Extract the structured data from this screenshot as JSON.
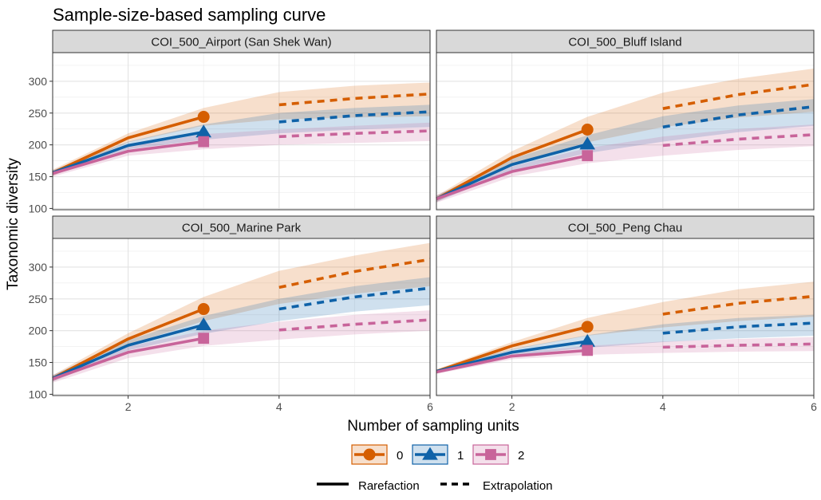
{
  "chart_data": {
    "type": "line",
    "title": "Sample-size-based sampling curve",
    "xlabel": "Number of sampling units",
    "ylabel": "Taxonomic diversity",
    "xlim": [
      1,
      6
    ],
    "ylim": [
      98,
      345
    ],
    "x_ticks": [
      2,
      4,
      6
    ],
    "y_ticks": [
      100,
      150,
      200,
      250,
      300
    ],
    "grid": true,
    "legend_placement": "bottom",
    "order_legend": [
      "0",
      "1",
      "2"
    ],
    "linetype_legend": [
      "Rarefaction",
      "Extrapolation"
    ],
    "colors": {
      "0": "#D55E00",
      "1": "#0F62A8",
      "2": "#C8649A"
    },
    "panels": [
      {
        "name": "COI_500_Airport (San Shek Wan)",
        "series": [
          {
            "name": "0",
            "x": [
              1,
              2,
              3,
              4,
              5,
              6
            ],
            "y": [
              156,
              211,
              244,
              263,
              273,
              280
            ],
            "lower": [
              151,
              204,
              230,
              240,
              243,
              245
            ],
            "upper": [
              161,
              218,
              258,
              283,
              293,
              298
            ]
          },
          {
            "name": "1",
            "x": [
              1,
              2,
              3,
              4,
              5,
              6
            ],
            "y": [
              156,
              199,
              220,
              236,
              246,
              252
            ],
            "lower": [
              152,
              193,
              208,
              218,
              224,
              228
            ],
            "upper": [
              160,
              205,
              232,
              250,
              258,
              263
            ]
          },
          {
            "name": "2",
            "x": [
              1,
              2,
              3,
              4,
              5,
              6
            ],
            "y": [
              155,
              190,
              205,
              213,
              218,
              222
            ],
            "lower": [
              150,
              183,
              193,
              200,
              203,
              206
            ],
            "upper": [
              160,
              197,
              217,
              224,
              230,
              235
            ]
          }
        ]
      },
      {
        "name": "COI_500_Bluff Island",
        "series": [
          {
            "name": "0",
            "x": [
              1,
              2,
              3,
              4,
              5,
              6
            ],
            "y": [
              115,
              180,
              224,
              257,
              279,
              295
            ],
            "lower": [
              110,
              170,
              204,
              228,
              243,
              252
            ],
            "upper": [
              120,
              190,
              244,
              282,
              304,
              320
            ]
          },
          {
            "name": "1",
            "x": [
              1,
              2,
              3,
              4,
              5,
              6
            ],
            "y": [
              115,
              169,
              201,
              228,
              247,
              260
            ],
            "lower": [
              110,
              160,
              187,
              205,
              220,
              230
            ],
            "upper": [
              120,
              178,
              215,
              245,
              262,
              272
            ]
          },
          {
            "name": "2",
            "x": [
              1,
              2,
              3,
              4,
              5,
              6
            ],
            "y": [
              115,
              158,
              183,
              199,
              209,
              216
            ],
            "lower": [
              109,
              150,
              171,
              183,
              192,
              198
            ],
            "upper": [
              121,
              166,
              195,
              213,
              225,
              232
            ]
          }
        ]
      },
      {
        "name": "COI_500_Marine Park",
        "series": [
          {
            "name": "0",
            "x": [
              1,
              2,
              3,
              4,
              5,
              6
            ],
            "y": [
              125,
              187,
              234,
              268,
              293,
              312
            ],
            "lower": [
              120,
              178,
              215,
              242,
              258,
              270
            ],
            "upper": [
              130,
              196,
              253,
              294,
              318,
              338
            ]
          },
          {
            "name": "1",
            "x": [
              1,
              2,
              3,
              4,
              5,
              6
            ],
            "y": [
              125,
              177,
              209,
              234,
              253,
              267
            ],
            "lower": [
              120,
              169,
              195,
              215,
              230,
              240
            ],
            "upper": [
              130,
              185,
              223,
              250,
              270,
              284
            ]
          },
          {
            "name": "2",
            "x": [
              1,
              2,
              3,
              4,
              5,
              6
            ],
            "y": [
              124,
              166,
              188,
              201,
              210,
              217
            ],
            "lower": [
              118,
              157,
              176,
              186,
              194,
              200
            ],
            "upper": [
              130,
              175,
              200,
              214,
              225,
              232
            ]
          }
        ]
      },
      {
        "name": "COI_500_Peng Chau",
        "series": [
          {
            "name": "0",
            "x": [
              1,
              2,
              3,
              4,
              5,
              6
            ],
            "y": [
              136,
              176,
              206,
              226,
              243,
              254
            ],
            "lower": [
              133,
              170,
              192,
              205,
              215,
              222
            ],
            "upper": [
              139,
              182,
              220,
              245,
              265,
              277
            ]
          },
          {
            "name": "1",
            "x": [
              1,
              2,
              3,
              4,
              5,
              6
            ],
            "y": [
              136,
              166,
              183,
              196,
              206,
              212
            ],
            "lower": [
              133,
              161,
              173,
              182,
              188,
              192
            ],
            "upper": [
              139,
              171,
              193,
              210,
              220,
              225
            ]
          },
          {
            "name": "2",
            "x": [
              1,
              2,
              3,
              4,
              5,
              6
            ],
            "y": [
              135,
              160,
              169,
              174,
              177,
              179
            ],
            "lower": [
              132,
              155,
              162,
              165,
              167,
              168
            ],
            "upper": [
              138,
              165,
              176,
              183,
              187,
              190
            ]
          }
        ]
      }
    ]
  }
}
